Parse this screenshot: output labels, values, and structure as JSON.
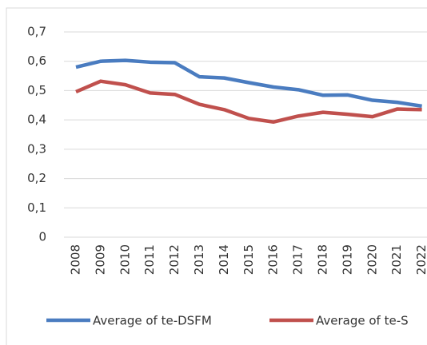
{
  "chart_data": {
    "type": "line",
    "categories": [
      "2008",
      "2009",
      "2010",
      "2011",
      "2012",
      "2013",
      "2014",
      "2015",
      "2016",
      "2017",
      "2018",
      "2019",
      "2020",
      "2021",
      "2022"
    ],
    "series": [
      {
        "name": "Average of te-DSFM",
        "color": "#4a7cc0",
        "values": [
          0.58,
          0.6,
          0.603,
          0.597,
          0.595,
          0.547,
          0.543,
          0.527,
          0.512,
          0.503,
          0.484,
          0.485,
          0.467,
          0.46,
          0.447
        ]
      },
      {
        "name": "Average of te-S",
        "color": "#c0504d",
        "values": [
          0.496,
          0.532,
          0.52,
          0.492,
          0.487,
          0.453,
          0.435,
          0.405,
          0.393,
          0.413,
          0.426,
          0.419,
          0.411,
          0.437,
          0.435
        ]
      }
    ],
    "ylim": [
      0,
      0.7
    ],
    "yticks": [
      0,
      {
        "value": 0.1,
        "label": "0,1"
      },
      {
        "value": 0.2,
        "label": "0,2"
      },
      {
        "value": 0.3,
        "label": "0,3"
      },
      {
        "value": 0.4,
        "label": "0,4"
      },
      {
        "value": 0.5,
        "label": "0,5"
      },
      {
        "value": 0.6,
        "label": "0,6"
      },
      {
        "value": 0.7,
        "label": "0,7"
      }
    ],
    "grid": true,
    "legend": "bottom"
  }
}
